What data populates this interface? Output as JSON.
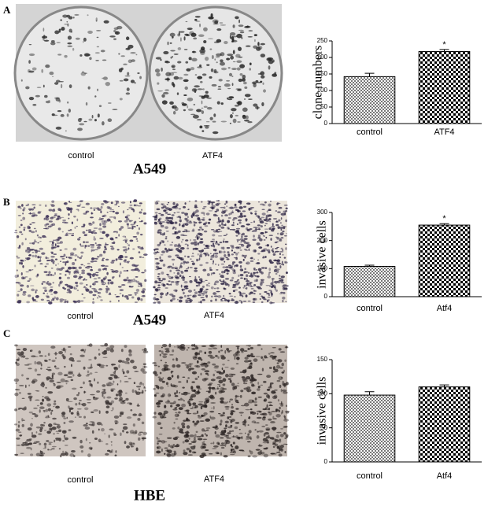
{
  "panels": [
    {
      "letter": "A",
      "captions": [
        "control",
        "ATF4"
      ],
      "cell_line": "A549"
    },
    {
      "letter": "B",
      "captions": [
        "control",
        "ATF4"
      ],
      "cell_line": "A549"
    },
    {
      "letter": "C",
      "captions": [
        "control",
        "ATF4"
      ],
      "cell_line": "HBE"
    }
  ],
  "chart_data": [
    {
      "type": "bar",
      "y_label": "clone numbers",
      "categories": [
        "control",
        "ATF4"
      ],
      "values": [
        142,
        218
      ],
      "errors": [
        10,
        6
      ],
      "annotations": [
        null,
        "*"
      ],
      "ylim": [
        0,
        250
      ],
      "yticks": [
        0,
        50,
        100,
        150,
        200,
        250
      ]
    },
    {
      "type": "bar",
      "y_label": "invasive cells",
      "categories": [
        "control",
        "Atf4"
      ],
      "values": [
        108,
        255
      ],
      "errors": [
        4,
        5
      ],
      "annotations": [
        null,
        "*"
      ],
      "ylim": [
        0,
        300
      ],
      "yticks": [
        0,
        100,
        200,
        300
      ]
    },
    {
      "type": "bar",
      "y_label": "invasive cells",
      "categories": [
        "control",
        "Atf4"
      ],
      "values": [
        98,
        110
      ],
      "errors": [
        5,
        3
      ],
      "annotations": [
        null,
        null
      ],
      "ylim": [
        0,
        150
      ],
      "yticks": [
        0,
        50,
        100,
        150
      ]
    }
  ]
}
